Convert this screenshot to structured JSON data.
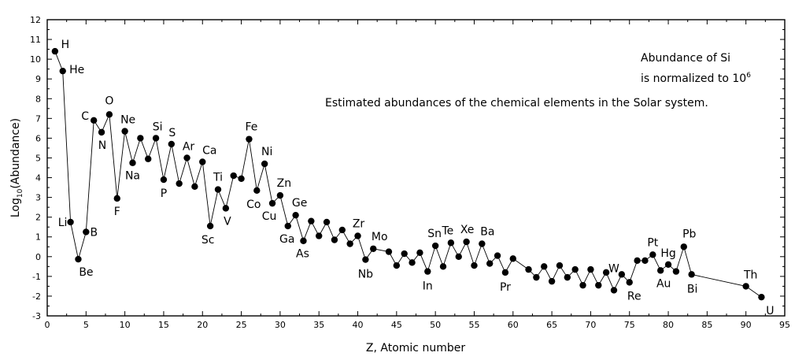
{
  "chart_data": {
    "type": "line",
    "title": "",
    "xlabel": "Z, Atomic number",
    "ylabel_base": "Log",
    "ylabel_sub": "10",
    "ylabel_rest": "(Abundance)",
    "xlim": [
      0,
      95
    ],
    "ylim": [
      -3,
      12
    ],
    "x_ticks": [
      0,
      5,
      10,
      15,
      20,
      25,
      30,
      35,
      40,
      45,
      50,
      55,
      60,
      65,
      70,
      75,
      80,
      85,
      90,
      95
    ],
    "y_ticks": [
      -3,
      -2,
      -1,
      0,
      1,
      2,
      3,
      4,
      5,
      6,
      7,
      8,
      9,
      10,
      11,
      12
    ],
    "grid": false,
    "annotations": {
      "normalization_line1": "Abundance of Si",
      "normalization_line2_base": "is normalized to 10",
      "normalization_line2_sup": "6",
      "description": "Estimated abundances of the chemical elements in the Solar system."
    },
    "series": [
      {
        "marker": "filled-circle",
        "color": "#000000",
        "points": [
          {
            "x": 1,
            "y": 10.4,
            "label": "H"
          },
          {
            "x": 2,
            "y": 9.4,
            "label": "He"
          },
          {
            "x": 3,
            "y": 1.75,
            "label": "Li"
          },
          {
            "x": 4,
            "y": -0.13,
            "label": "Be"
          },
          {
            "x": 5,
            "y": 1.25,
            "label": "B"
          },
          {
            "x": 6,
            "y": 6.9,
            "label": "C"
          },
          {
            "x": 7,
            "y": 6.3,
            "label": "N"
          },
          {
            "x": 8,
            "y": 7.2,
            "label": "O"
          },
          {
            "x": 9,
            "y": 2.95,
            "label": "F"
          },
          {
            "x": 10,
            "y": 6.35,
            "label": "Ne"
          },
          {
            "x": 11,
            "y": 4.75,
            "label": "Na"
          },
          {
            "x": 12,
            "y": 6.0
          },
          {
            "x": 13,
            "y": 4.95
          },
          {
            "x": 14,
            "y": 6.0,
            "label": "Si"
          },
          {
            "x": 15,
            "y": 3.9,
            "label": "P"
          },
          {
            "x": 16,
            "y": 5.7,
            "label": "S"
          },
          {
            "x": 17,
            "y": 3.7
          },
          {
            "x": 18,
            "y": 5.0,
            "label": "Ar"
          },
          {
            "x": 19,
            "y": 3.55
          },
          {
            "x": 20,
            "y": 4.8,
            "label": "Ca"
          },
          {
            "x": 21,
            "y": 1.55,
            "label": "Sc"
          },
          {
            "x": 22,
            "y": 3.4,
            "label": "Ti"
          },
          {
            "x": 23,
            "y": 2.45,
            "label": "V"
          },
          {
            "x": 24,
            "y": 4.1
          },
          {
            "x": 25,
            "y": 3.95
          },
          {
            "x": 26,
            "y": 5.95,
            "label": "Fe"
          },
          {
            "x": 27,
            "y": 3.35,
            "label": "Co"
          },
          {
            "x": 28,
            "y": 4.7,
            "label": "Ni"
          },
          {
            "x": 29,
            "y": 2.7,
            "label": "Cu"
          },
          {
            "x": 30,
            "y": 3.1,
            "label": "Zn"
          },
          {
            "x": 31,
            "y": 1.55,
            "label": "Ga"
          },
          {
            "x": 32,
            "y": 2.1,
            "label": "Ge"
          },
          {
            "x": 33,
            "y": 0.8,
            "label": "As"
          },
          {
            "x": 34,
            "y": 1.8
          },
          {
            "x": 35,
            "y": 1.05
          },
          {
            "x": 36,
            "y": 1.75
          },
          {
            "x": 37,
            "y": 0.85
          },
          {
            "x": 38,
            "y": 1.35
          },
          {
            "x": 39,
            "y": 0.65
          },
          {
            "x": 40,
            "y": 1.05,
            "label": "Zr"
          },
          {
            "x": 41,
            "y": -0.15,
            "label": "Nb"
          },
          {
            "x": 42,
            "y": 0.4,
            "label": "Mo"
          },
          {
            "x": 44,
            "y": 0.25
          },
          {
            "x": 45,
            "y": -0.45
          },
          {
            "x": 46,
            "y": 0.15
          },
          {
            "x": 47,
            "y": -0.3
          },
          {
            "x": 48,
            "y": 0.2
          },
          {
            "x": 49,
            "y": -0.75,
            "label": "In"
          },
          {
            "x": 50,
            "y": 0.55,
            "label": "Sn"
          },
          {
            "x": 51,
            "y": -0.5
          },
          {
            "x": 52,
            "y": 0.7,
            "label": "Te"
          },
          {
            "x": 53,
            "y": 0.0
          },
          {
            "x": 54,
            "y": 0.75,
            "label": "Xe"
          },
          {
            "x": 55,
            "y": -0.45
          },
          {
            "x": 56,
            "y": 0.65,
            "label": "Ba"
          },
          {
            "x": 57,
            "y": -0.35
          },
          {
            "x": 58,
            "y": 0.05
          },
          {
            "x": 59,
            "y": -0.8,
            "label": "Pr"
          },
          {
            "x": 60,
            "y": -0.1
          },
          {
            "x": 62,
            "y": -0.65
          },
          {
            "x": 63,
            "y": -1.05
          },
          {
            "x": 64,
            "y": -0.5
          },
          {
            "x": 65,
            "y": -1.25
          },
          {
            "x": 66,
            "y": -0.45
          },
          {
            "x": 67,
            "y": -1.05
          },
          {
            "x": 68,
            "y": -0.65
          },
          {
            "x": 69,
            "y": -1.45
          },
          {
            "x": 70,
            "y": -0.65
          },
          {
            "x": 71,
            "y": -1.45
          },
          {
            "x": 72,
            "y": -0.8
          },
          {
            "x": 73,
            "y": -1.7
          },
          {
            "x": 74,
            "y": -0.9,
            "label": "W"
          },
          {
            "x": 75,
            "y": -1.3,
            "label": "Re"
          },
          {
            "x": 76,
            "y": -0.2
          },
          {
            "x": 77,
            "y": -0.2
          },
          {
            "x": 78,
            "y": 0.1,
            "label": "Pt"
          },
          {
            "x": 79,
            "y": -0.7,
            "label": "Au"
          },
          {
            "x": 80,
            "y": -0.4,
            "label": "Hg"
          },
          {
            "x": 81,
            "y": -0.75
          },
          {
            "x": 82,
            "y": 0.5,
            "label": "Pb"
          },
          {
            "x": 83,
            "y": -0.9,
            "label": "Bi"
          },
          {
            "x": 90,
            "y": -1.5,
            "label": "Th"
          },
          {
            "x": 92,
            "y": -2.05,
            "label": "U"
          }
        ]
      }
    ]
  }
}
